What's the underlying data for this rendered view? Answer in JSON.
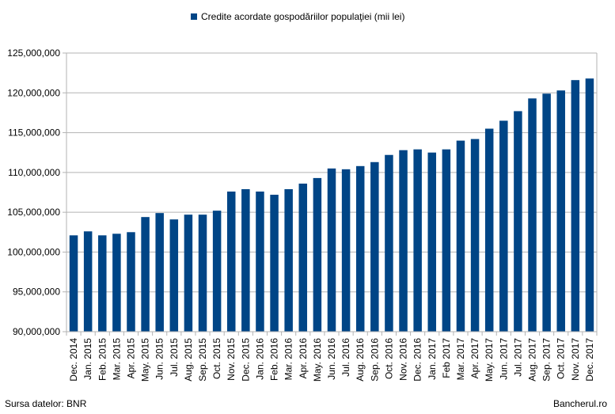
{
  "chart_data": {
    "type": "bar",
    "title": "",
    "xlabel": "",
    "ylabel": "",
    "ylim": [
      90000000,
      125000000
    ],
    "yticks": [
      "90,000,000",
      "95,000,000",
      "100,000,000",
      "105,000,000",
      "110,000,000",
      "115,000,000",
      "120,000,000",
      "125,000,000"
    ],
    "ytick_values": [
      90000000,
      95000000,
      100000000,
      105000000,
      110000000,
      115000000,
      120000000,
      125000000
    ],
    "grid": true,
    "legend_position": "top-center",
    "series": [
      {
        "name": "Credite acordate gospodăriilor populaţiei (mii lei)",
        "color": "#004586",
        "values": [
          102100000,
          102600000,
          102100000,
          102300000,
          102500000,
          104400000,
          104900000,
          104100000,
          104700000,
          104700000,
          105200000,
          107600000,
          107900000,
          107600000,
          107200000,
          107900000,
          108600000,
          109300000,
          110500000,
          110400000,
          110800000,
          111300000,
          112200000,
          112800000,
          112900000,
          112500000,
          112900000,
          114000000,
          114200000,
          115500000,
          116500000,
          117700000,
          119300000,
          119900000,
          120300000,
          121600000,
          121800000
        ]
      }
    ],
    "categories": [
      "Dec. 2014",
      "Jan. 2015",
      "Feb. 2015",
      "Mar. 2015",
      "Apr. 2015",
      "May. 2015",
      "Jun. 2015",
      "Jul. 2015",
      "Aug. 2015",
      "Sep. 2015",
      "Oct. 2015",
      "Nov. 2015",
      "Dec. 2015",
      "Jan. 2016",
      "Feb. 2016",
      "Mar. 2016",
      "Apr. 2016",
      "May. 2016",
      "Jun. 2016",
      "Jul. 2016",
      "Aug. 2016",
      "Sep. 2016",
      "Oct. 2016",
      "Nov. 2016",
      "Dec. 2016",
      "Jan. 2017",
      "Feb 2017",
      "Mar. 2017",
      "Apr. 2017",
      "May. 2017",
      "Jun. 2017",
      "Jul. 2017",
      "Aug. 2017",
      "Sep. 2017",
      "Oct. 2017",
      "Nov. 2017",
      "Dec. 2017"
    ]
  },
  "footer": {
    "source": "Sursa datelor: BNR",
    "brand": "Bancherul.ro"
  }
}
